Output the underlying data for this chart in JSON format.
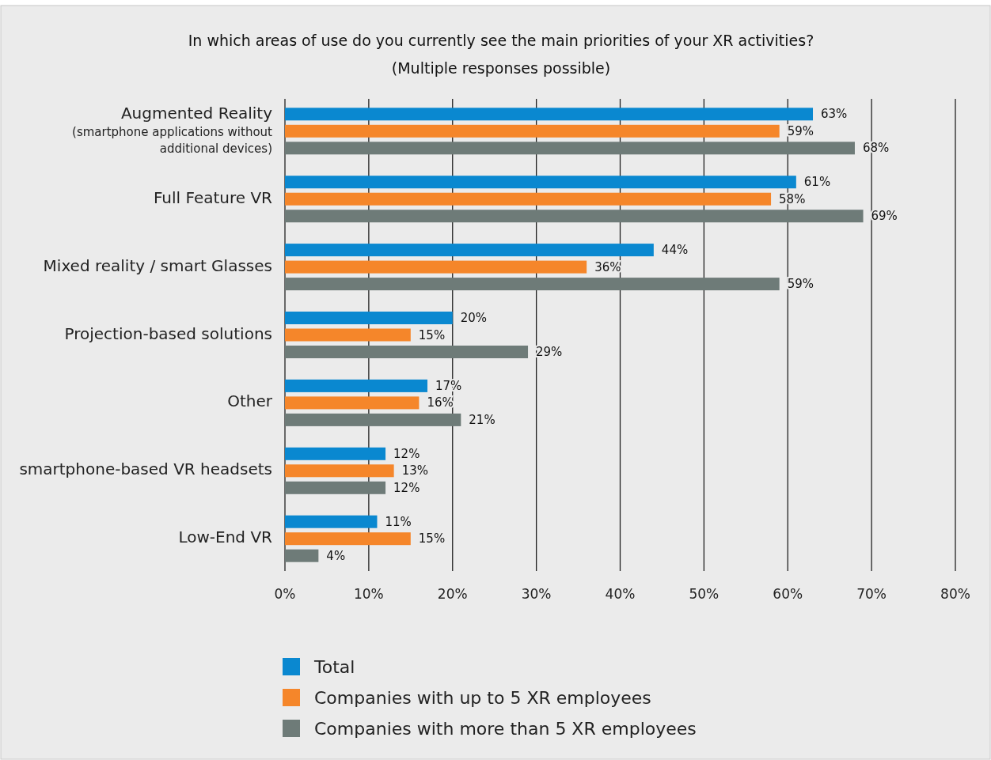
{
  "chart_data": {
    "type": "bar",
    "orientation": "horizontal",
    "title": "In which areas of use do you currently see the main priorities of your XR activities?",
    "subtitle": "(Multiple responses possible)",
    "categories": [
      "Augmented Reality\n(smartphone applications without\nadditional devices)",
      "Full Feature VR",
      "Mixed reality / smart Glasses",
      "Projection-based solutions",
      "Other",
      "smartphone-based VR headsets",
      "Low-End VR"
    ],
    "series": [
      {
        "name": "Total",
        "color": "#0a88d0",
        "values": [
          63,
          61,
          44,
          20,
          17,
          12,
          11
        ],
        "value_labels": [
          "63%",
          "61%",
          "44%",
          "20%",
          "17%",
          "12%",
          "11%"
        ]
      },
      {
        "name": "Companies with up to 5 XR employees",
        "color": "#f5862a",
        "values": [
          59,
          58,
          36,
          15,
          16,
          13,
          15
        ],
        "value_labels": [
          "59%",
          "58%",
          "36%",
          "15%",
          "16%",
          "13%",
          "15%"
        ]
      },
      {
        "name": "Companies with more than 5 XR employees",
        "color": "#6e7b78",
        "values": [
          68,
          69,
          59,
          29,
          21,
          12,
          4
        ],
        "value_labels": [
          "68%",
          "69%",
          "59%",
          "29%",
          "21%",
          "12%",
          "4%"
        ]
      }
    ],
    "xlim": [
      0,
      80
    ],
    "xticks": [
      {
        "value": 0,
        "label": "0%"
      },
      {
        "value": 10,
        "label": "10%"
      },
      {
        "value": 20,
        "label": "20%"
      },
      {
        "value": 30,
        "label": "30%"
      },
      {
        "value": 40,
        "label": "40%"
      },
      {
        "value": 50,
        "label": "50%"
      },
      {
        "value": 60,
        "label": "60%"
      },
      {
        "value": 70,
        "label": "70%"
      },
      {
        "value": 80,
        "label": "80%"
      }
    ],
    "grid": "x",
    "legend": "bottom"
  }
}
